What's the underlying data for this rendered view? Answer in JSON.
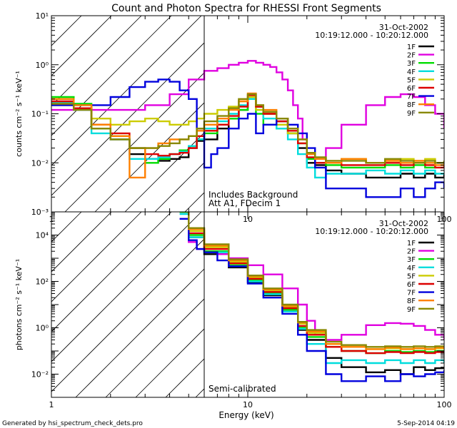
{
  "page": {
    "title": "Count and Photon Spectra for RHESSI Front Segments",
    "footer_left": "Generated by hsi_spectrum_check_dets.pro",
    "footer_right": "5-Sep-2014 04:19",
    "xlabel": "Energy (keV)"
  },
  "chart_data": [
    {
      "type": "line",
      "title": "Count and Photon Spectra for RHESSI Front Segments",
      "xscale": "log",
      "yscale": "log",
      "xlim": [
        1,
        100
      ],
      "ylim": [
        0.001,
        10
      ],
      "xlabel": "Energy (keV)",
      "ylabel": "counts cm⁻² s⁻¹ keV⁻¹",
      "x_ticks": [
        "1",
        "10",
        "100"
      ],
      "y_ticks": [
        "10⁻³",
        "10⁻²",
        "10⁻¹",
        "10⁰",
        "10¹"
      ],
      "date": "31-Oct-2002",
      "time_range": "10:19:12.000 - 10:20:12.000",
      "annotation_lines": [
        "Includes Background",
        "Att A1, FDecim 1"
      ],
      "vertical_line_x": 6,
      "hatch_region": [
        1,
        6
      ],
      "legend_position": "top-right",
      "series": [
        {
          "name": "1F",
          "color": "#000000",
          "x": [
            1,
            1.3,
            1.6,
            2.0,
            2.5,
            3.0,
            3.5,
            4,
            4.5,
            5,
            5.5,
            6,
            7,
            8,
            9,
            10,
            11,
            12,
            14,
            16,
            18,
            20,
            22,
            25,
            30,
            40,
            50,
            60,
            70,
            80,
            90,
            100
          ],
          "values": [
            0.15,
            0.13,
            0.06,
            0.03,
            0.015,
            0.012,
            0.011,
            0.012,
            0.013,
            0.02,
            0.028,
            0.03,
            0.05,
            0.08,
            0.12,
            0.2,
            0.14,
            0.1,
            0.07,
            0.04,
            0.02,
            0.01,
            0.009,
            0.007,
            0.006,
            0.005,
            0.005,
            0.006,
            0.005,
            0.006,
            0.005,
            0.006
          ]
        },
        {
          "name": "2F",
          "color": "#e000e0",
          "x": [
            1,
            2,
            3,
            4,
            5,
            6,
            7,
            8,
            9,
            10,
            11,
            12,
            13,
            14,
            15,
            16,
            17,
            18,
            19,
            20,
            22,
            25,
            30,
            40,
            50,
            60,
            70,
            80,
            90,
            100
          ],
          "values": [
            0.12,
            0.12,
            0.15,
            0.25,
            0.5,
            0.75,
            0.85,
            1.0,
            1.1,
            1.2,
            1.1,
            1.0,
            0.9,
            0.7,
            0.5,
            0.3,
            0.15,
            0.08,
            0.03,
            0.012,
            0.01,
            0.02,
            0.06,
            0.15,
            0.22,
            0.25,
            0.22,
            0.15,
            0.1,
            0.05
          ]
        },
        {
          "name": "3F",
          "color": "#00dd00",
          "x": [
            1,
            1.3,
            1.6,
            2.0,
            2.5,
            3.0,
            3.5,
            4,
            4.5,
            5,
            5.5,
            6,
            7,
            8,
            9,
            10,
            11,
            12,
            14,
            16,
            18,
            20,
            22,
            25,
            30,
            40,
            50,
            60,
            70,
            80,
            90,
            100
          ],
          "values": [
            0.22,
            0.16,
            0.05,
            0.035,
            0.02,
            0.01,
            0.012,
            0.015,
            0.018,
            0.022,
            0.03,
            0.04,
            0.06,
            0.08,
            0.12,
            0.2,
            0.1,
            0.06,
            0.05,
            0.04,
            0.025,
            0.012,
            0.01,
            0.009,
            0.008,
            0.008,
            0.009,
            0.008,
            0.009,
            0.008,
            0.01,
            0.009
          ]
        },
        {
          "name": "4F",
          "color": "#00dddd",
          "x": [
            1,
            1.3,
            1.6,
            2.0,
            2.5,
            3.0,
            3.5,
            4,
            4.5,
            5,
            5.5,
            6,
            7,
            8,
            9,
            10,
            11,
            12,
            14,
            16,
            18,
            20,
            22,
            25,
            30,
            40,
            50,
            60,
            70,
            80,
            90,
            100
          ],
          "values": [
            0.17,
            0.12,
            0.04,
            0.03,
            0.012,
            0.012,
            0.013,
            0.015,
            0.017,
            0.022,
            0.03,
            0.05,
            0.07,
            0.1,
            0.15,
            0.2,
            0.12,
            0.08,
            0.05,
            0.03,
            0.015,
            0.008,
            0.005,
            0.006,
            0.006,
            0.007,
            0.006,
            0.007,
            0.006,
            0.007,
            0.006,
            0.006
          ]
        },
        {
          "name": "5F",
          "color": "#cccc00",
          "x": [
            1,
            1.3,
            1.6,
            2.0,
            2.5,
            3.0,
            3.5,
            4,
            4.5,
            5,
            5.5,
            6,
            7,
            8,
            9,
            10,
            11,
            12,
            14,
            16,
            18,
            20,
            22,
            25,
            30,
            40,
            50,
            60,
            70,
            80,
            90,
            100
          ],
          "values": [
            0.2,
            0.15,
            0.08,
            0.06,
            0.07,
            0.08,
            0.07,
            0.06,
            0.06,
            0.07,
            0.08,
            0.1,
            0.12,
            0.14,
            0.18,
            0.22,
            0.12,
            0.1,
            0.06,
            0.04,
            0.025,
            0.015,
            0.012,
            0.01,
            0.012,
            0.01,
            0.011,
            0.012,
            0.011,
            0.012,
            0.01,
            0.011
          ]
        },
        {
          "name": "6F",
          "color": "#dd0000",
          "x": [
            1,
            1.3,
            1.6,
            2.0,
            2.5,
            3.0,
            3.5,
            4,
            4.5,
            5,
            5.5,
            6,
            7,
            8,
            9,
            10,
            11,
            12,
            14,
            16,
            18,
            20,
            22,
            25,
            30,
            40,
            50,
            60,
            70,
            80,
            90,
            100
          ],
          "values": [
            0.18,
            0.13,
            0.06,
            0.04,
            0.02,
            0.015,
            0.014,
            0.015,
            0.016,
            0.02,
            0.035,
            0.045,
            0.06,
            0.09,
            0.14,
            0.24,
            0.14,
            0.1,
            0.07,
            0.045,
            0.025,
            0.013,
            0.01,
            0.01,
            0.009,
            0.009,
            0.01,
            0.009,
            0.01,
            0.009,
            0.008,
            0.009
          ]
        },
        {
          "name": "7F",
          "color": "#0000dd",
          "x": [
            1,
            1.3,
            1.6,
            2.0,
            2.5,
            3.0,
            3.5,
            4,
            4.5,
            5,
            5.5,
            6,
            6.5,
            7,
            8,
            9,
            10,
            11,
            12,
            14,
            16,
            18,
            20,
            22,
            25,
            30,
            40,
            50,
            60,
            70,
            80,
            90,
            100
          ],
          "values": [
            0.15,
            0.15,
            0.15,
            0.22,
            0.35,
            0.45,
            0.5,
            0.45,
            0.3,
            0.2,
            0.05,
            0.008,
            0.015,
            0.02,
            0.05,
            0.08,
            0.1,
            0.04,
            0.06,
            0.08,
            0.06,
            0.04,
            0.02,
            0.008,
            0.003,
            0.003,
            0.002,
            0.002,
            0.003,
            0.002,
            0.003,
            0.004,
            0.003
          ]
        },
        {
          "name": "8F",
          "color": "#ff8000",
          "x": [
            1,
            1.3,
            1.6,
            2.0,
            2.5,
            3.0,
            3.5,
            4,
            4.5,
            5,
            5.5,
            6,
            7,
            8,
            9,
            10,
            11,
            12,
            14,
            16,
            18,
            20,
            22,
            25,
            30,
            40,
            50,
            60,
            70,
            80,
            90,
            100
          ],
          "values": [
            0.2,
            0.15,
            0.06,
            0.035,
            0.005,
            0.02,
            0.025,
            0.03,
            0.03,
            0.035,
            0.045,
            0.06,
            0.08,
            0.12,
            0.18,
            0.26,
            0.15,
            0.12,
            0.08,
            0.05,
            0.03,
            0.015,
            0.012,
            0.01,
            0.012,
            0.01,
            0.011,
            0.01,
            0.011,
            0.01,
            0.009,
            0.01
          ]
        },
        {
          "name": "9F",
          "color": "#888800",
          "x": [
            1,
            1.3,
            1.6,
            2.0,
            2.5,
            3.0,
            3.5,
            4,
            4.5,
            5,
            5.5,
            6,
            7,
            8,
            9,
            10,
            11,
            12,
            14,
            16,
            18,
            20,
            22,
            25,
            30,
            40,
            50,
            60,
            70,
            80,
            90,
            100
          ],
          "values": [
            0.16,
            0.12,
            0.05,
            0.03,
            0.02,
            0.02,
            0.022,
            0.025,
            0.03,
            0.035,
            0.05,
            0.07,
            0.09,
            0.13,
            0.2,
            0.25,
            0.15,
            0.11,
            0.08,
            0.05,
            0.03,
            0.016,
            0.013,
            0.011,
            0.011,
            0.01,
            0.012,
            0.011,
            0.01,
            0.011,
            0.01,
            0.011
          ]
        }
      ]
    },
    {
      "type": "line",
      "xscale": "log",
      "yscale": "log",
      "xlim": [
        1,
        100
      ],
      "ylim": [
        0.001,
        100000
      ],
      "xlabel": "Energy (keV)",
      "ylabel": "photons cm⁻² s⁻¹ keV⁻¹",
      "x_ticks": [
        "1",
        "10",
        "100"
      ],
      "y_ticks": [
        "10⁻²",
        "10⁰",
        "10²",
        "10⁴"
      ],
      "date": "31-Oct-2002",
      "time_range": "10:19:12.000 - 10:20:12.000",
      "annotation_lines": [
        "Semi-calibrated"
      ],
      "vertical_line_x": 6,
      "hatch_region": [
        1,
        6
      ],
      "legend_position": "top-right",
      "series": [
        {
          "name": "1F",
          "color": "#000000",
          "x": [
            4.5,
            5,
            6,
            8,
            10,
            12,
            15,
            18,
            20,
            25,
            30,
            40,
            50,
            60,
            70,
            80,
            90,
            100
          ],
          "values": [
            100000,
            8000,
            1500,
            400,
            90,
            25,
            5,
            0.8,
            0.3,
            0.05,
            0.02,
            0.012,
            0.015,
            0.01,
            0.02,
            0.015,
            0.018,
            0.02
          ]
        },
        {
          "name": "2F",
          "color": "#e000e0",
          "x": [
            4.5,
            5,
            5.5,
            6,
            7,
            8,
            10,
            12,
            15,
            18,
            20,
            22,
            25,
            30,
            40,
            50,
            60,
            70,
            80,
            90,
            100
          ],
          "values": [
            50000,
            5000,
            2500,
            2000,
            1500,
            1000,
            500,
            200,
            50,
            10,
            2,
            0.5,
            0.3,
            0.5,
            1.3,
            1.6,
            1.5,
            1.2,
            0.8,
            0.5,
            0.3
          ]
        },
        {
          "name": "3F",
          "color": "#00dd00",
          "x": [
            4.5,
            5,
            6,
            8,
            10,
            12,
            15,
            18,
            20,
            25,
            30,
            40,
            50,
            60,
            70,
            80,
            90,
            100
          ],
          "values": [
            100000,
            10000,
            2000,
            500,
            110,
            30,
            6,
            1,
            0.4,
            0.15,
            0.1,
            0.08,
            0.1,
            0.09,
            0.1,
            0.09,
            0.1,
            0.09
          ]
        },
        {
          "name": "4F",
          "color": "#00dddd",
          "x": [
            4.5,
            5,
            6,
            8,
            10,
            12,
            15,
            18,
            20,
            25,
            30,
            40,
            50,
            60,
            70,
            80,
            90,
            100
          ],
          "values": [
            80000,
            8000,
            1800,
            450,
            100,
            28,
            5,
            0.9,
            0.2,
            0.03,
            0.04,
            0.03,
            0.04,
            0.03,
            0.04,
            0.03,
            0.04,
            0.03
          ]
        },
        {
          "name": "5F",
          "color": "#cccc00",
          "x": [
            4.5,
            5,
            6,
            8,
            10,
            12,
            15,
            18,
            20,
            25,
            30,
            40,
            50,
            60,
            70,
            80,
            90,
            100
          ],
          "values": [
            150000,
            15000,
            3000,
            700,
            150,
            40,
            8,
            1.5,
            0.6,
            0.2,
            0.15,
            0.12,
            0.13,
            0.12,
            0.13,
            0.12,
            0.13,
            0.12
          ]
        },
        {
          "name": "6F",
          "color": "#dd0000",
          "x": [
            4.5,
            5,
            6,
            8,
            10,
            12,
            15,
            18,
            20,
            25,
            30,
            40,
            50,
            60,
            70,
            80,
            90,
            100
          ],
          "values": [
            120000,
            12000,
            2500,
            600,
            130,
            35,
            7,
            1.2,
            0.5,
            0.15,
            0.1,
            0.08,
            0.09,
            0.08,
            0.09,
            0.08,
            0.09,
            0.08
          ]
        },
        {
          "name": "7F",
          "color": "#0000dd",
          "x": [
            4.5,
            5,
            5.5,
            6,
            7,
            8,
            10,
            12,
            15,
            18,
            20,
            25,
            30,
            40,
            50,
            60,
            70,
            80,
            90,
            100
          ],
          "values": [
            50000,
            6000,
            2500,
            1800,
            800,
            450,
            80,
            20,
            4,
            0.5,
            0.1,
            0.01,
            0.005,
            0.008,
            0.005,
            0.01,
            0.008,
            0.01,
            0.012,
            0.015
          ]
        },
        {
          "name": "8F",
          "color": "#ff8000",
          "x": [
            4.5,
            5,
            6,
            8,
            10,
            12,
            15,
            18,
            20,
            25,
            30,
            40,
            50,
            60,
            70,
            80,
            90,
            100
          ],
          "values": [
            180000,
            18000,
            3500,
            800,
            170,
            45,
            9,
            1.7,
            0.7,
            0.2,
            0.15,
            0.12,
            0.14,
            0.12,
            0.13,
            0.12,
            0.14,
            0.12
          ]
        },
        {
          "name": "9F",
          "color": "#888800",
          "x": [
            4.5,
            5,
            6,
            8,
            10,
            12,
            15,
            18,
            20,
            25,
            30,
            40,
            50,
            60,
            70,
            80,
            90,
            100
          ],
          "values": [
            200000,
            20000,
            4000,
            900,
            180,
            50,
            10,
            1.8,
            0.8,
            0.25,
            0.18,
            0.15,
            0.16,
            0.15,
            0.16,
            0.15,
            0.16,
            0.15
          ]
        }
      ]
    }
  ]
}
